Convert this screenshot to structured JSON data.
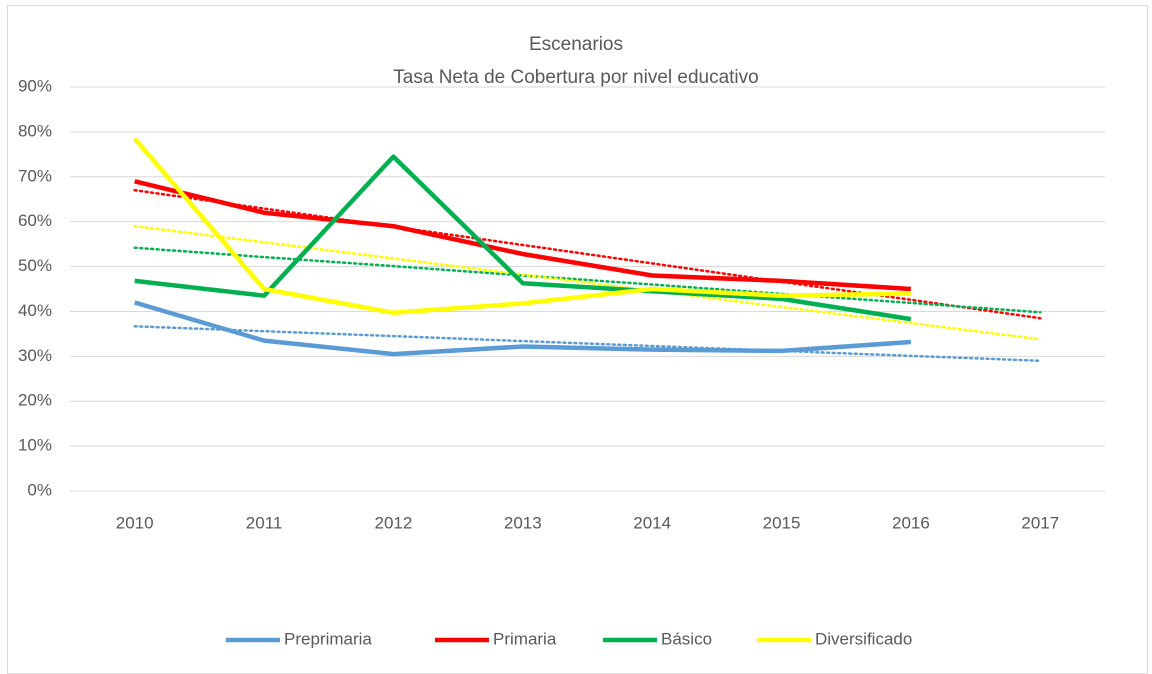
{
  "chart_data": {
    "type": "line",
    "title": "Escenarios",
    "subtitle": "Tasa Neta de Cobertura por nivel educativo",
    "categories": [
      "2010",
      "2011",
      "2012",
      "2013",
      "2014",
      "2015",
      "2016",
      "2017"
    ],
    "series": [
      {
        "name": "Preprimaria",
        "color": "#5b9bd5",
        "values": [
          42,
          33.5,
          30.5,
          32.2,
          31.5,
          31.2,
          33.2,
          null
        ]
      },
      {
        "name": "Primaria",
        "color": "#ff0000",
        "values": [
          69,
          62,
          59,
          52.8,
          48,
          46.8,
          45,
          null
        ]
      },
      {
        "name": "Básico",
        "color": "#00b050",
        "values": [
          46.8,
          43.5,
          74.5,
          46.3,
          44.5,
          42.8,
          38.3,
          null
        ]
      },
      {
        "name": "Diversificado",
        "color": "#ffff00",
        "values": [
          78.5,
          45,
          39.7,
          41.8,
          45,
          43.5,
          44,
          null
        ]
      }
    ],
    "trendlines": [
      {
        "color": "#5b9bd5",
        "values": [
          36.7,
          35.6,
          34.5,
          33.4,
          32.3,
          31.2,
          30.1,
          29.0
        ]
      },
      {
        "color": "#ff0000",
        "values": [
          67,
          62.9,
          58.9,
          54.8,
          50.7,
          46.6,
          42.6,
          38.5
        ]
      },
      {
        "color": "#00b050",
        "values": [
          54.2,
          52.1,
          50.1,
          48.0,
          46.0,
          43.9,
          41.9,
          39.8
        ]
      },
      {
        "color": "#ffff00",
        "values": [
          59,
          55.4,
          51.8,
          48.2,
          44.6,
          41.0,
          37.4,
          33.8
        ]
      }
    ],
    "ylim": [
      0,
      90
    ],
    "yticks": [
      {
        "value": 0,
        "label": "0%"
      },
      {
        "value": 10,
        "label": "10%"
      },
      {
        "value": 20,
        "label": "20%"
      },
      {
        "value": 30,
        "label": "30%"
      },
      {
        "value": 40,
        "label": "40%"
      },
      {
        "value": 50,
        "label": "50%"
      },
      {
        "value": 60,
        "label": "60%"
      },
      {
        "value": 70,
        "label": "70%"
      },
      {
        "value": 80,
        "label": "80%"
      },
      {
        "value": 90,
        "label": "90%"
      }
    ],
    "grid": true,
    "legend": "bottom"
  }
}
